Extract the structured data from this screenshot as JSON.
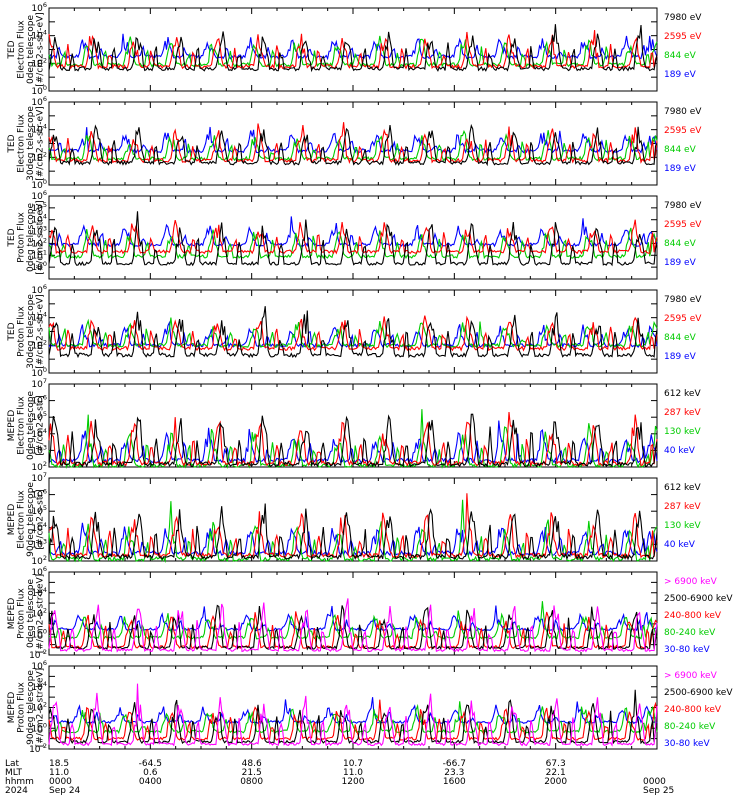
{
  "chart_data": [
    {
      "type": "line",
      "instrument": "TED",
      "ylabel": [
        "TED",
        "Electron Flux",
        "0deg telescope",
        "[#/cm2-s-str-eV]"
      ],
      "ylim": [
        1,
        1000000
      ],
      "yscale": "log",
      "ytick_labels": [
        "10^6",
        "10^4",
        "10^2",
        "10^0"
      ],
      "series": [
        {
          "name": "7980 eV",
          "color": "#000000",
          "base": 40
        },
        {
          "name": "2595 eV",
          "color": "#ff0000",
          "base": 60
        },
        {
          "name": "844 eV",
          "color": "#00cc00",
          "base": 80
        },
        {
          "name": "189 eV",
          "color": "#0000ff",
          "base": 300
        }
      ]
    },
    {
      "type": "line",
      "instrument": "TED",
      "ylabel": [
        "TED",
        "Electron Flux",
        "30deg telescope",
        "[#/cm2-s-str-eV]"
      ],
      "ylim": [
        1,
        1000000
      ],
      "yscale": "log",
      "ytick_labels": [
        "10^6",
        "10^4",
        "10^2",
        "10^0"
      ],
      "series": [
        {
          "name": "7980 eV",
          "color": "#000000",
          "base": 40
        },
        {
          "name": "2595 eV",
          "color": "#ff0000",
          "base": 60
        },
        {
          "name": "844 eV",
          "color": "#00cc00",
          "base": 80
        },
        {
          "name": "189 eV",
          "color": "#0000ff",
          "base": 300
        }
      ]
    },
    {
      "type": "line",
      "instrument": "TED",
      "ylabel": [
        "TED",
        "Proton Flux",
        "0deg telescope",
        "[#/cm2-s-str-eV]"
      ],
      "ylim": [
        0.1,
        1000000
      ],
      "yscale": "log",
      "ytick_labels": [
        "10^6",
        "10^5",
        "10^4",
        "10^3",
        "10^2",
        "10^1",
        "10^0"
      ],
      "series": [
        {
          "name": "7980 eV",
          "color": "#000000",
          "base": 2
        },
        {
          "name": "2595 eV",
          "color": "#ff0000",
          "base": 20
        },
        {
          "name": "844 eV",
          "color": "#00cc00",
          "base": 8
        },
        {
          "name": "189 eV",
          "color": "#0000ff",
          "base": 80
        }
      ]
    },
    {
      "type": "line",
      "instrument": "TED",
      "ylabel": [
        "TED",
        "Proton Flux",
        "30deg telescope",
        "[#/cm2-s-str-eV]"
      ],
      "ylim": [
        1,
        1000000
      ],
      "yscale": "log",
      "ytick_labels": [
        "10^6",
        "10^4",
        "10^2",
        "10^0"
      ],
      "series": [
        {
          "name": "7980 eV",
          "color": "#000000",
          "base": 20
        },
        {
          "name": "2595 eV",
          "color": "#ff0000",
          "base": 60
        },
        {
          "name": "844 eV",
          "color": "#00cc00",
          "base": 100
        },
        {
          "name": "189 eV",
          "color": "#0000ff",
          "base": 100
        }
      ]
    },
    {
      "type": "line",
      "instrument": "MEPED",
      "ylabel": [
        "MEPED",
        "Electron Flux",
        "0deg telescope",
        "[#/cm2-s-str]"
      ],
      "ylim": [
        100,
        10000000
      ],
      "yscale": "log",
      "ytick_labels": [
        "10^7",
        "10^6",
        "10^5",
        "10^4",
        "10^3",
        "10^2"
      ],
      "series": [
        {
          "name": "612 keV",
          "color": "#000000",
          "base": 150
        },
        {
          "name": "287 keV",
          "color": "#ff0000",
          "base": 170
        },
        {
          "name": "130 keV",
          "color": "#00cc00",
          "base": 120
        },
        {
          "name": "40 keV",
          "color": "#0000ff",
          "base": 250
        }
      ]
    },
    {
      "type": "line",
      "instrument": "MEPED",
      "ylabel": [
        "MEPED",
        "Electron Flux",
        "90deg telescope",
        "[#/cm2-s-str]"
      ],
      "ylim": [
        100,
        10000000
      ],
      "yscale": "log",
      "ytick_labels": [
        "10^7",
        "10^6",
        "10^5",
        "10^4",
        "10^3",
        "10^2"
      ],
      "series": [
        {
          "name": "612 keV",
          "color": "#000000",
          "base": 180
        },
        {
          "name": "287 keV",
          "color": "#ff0000",
          "base": 220
        },
        {
          "name": "130 keV",
          "color": "#00cc00",
          "base": 130
        },
        {
          "name": "40 keV",
          "color": "#0000ff",
          "base": 300
        }
      ]
    },
    {
      "type": "line",
      "instrument": "MEPED",
      "ylabel": [
        "MEPED",
        "Proton Flux",
        "0deg telescope",
        "[#/cm2-s-str-keV]"
      ],
      "ylim": [
        0.01,
        1000000
      ],
      "yscale": "log",
      "ytick_labels": [
        "10^6",
        "10^4",
        "10^2",
        "10^0",
        "10^-2"
      ],
      "series": [
        {
          "name": "> 6900 keV",
          "color": "#ff00ff",
          "base": 0.03
        },
        {
          "name": "2500-6900 keV",
          "color": "#000000",
          "base": 0.05
        },
        {
          "name": "240-800 keV",
          "color": "#ff0000",
          "base": 0.06
        },
        {
          "name": "80-240 keV",
          "color": "#00cc00",
          "base": 0.5
        },
        {
          "name": "30-80 keV",
          "color": "#0000ff",
          "base": 3
        }
      ]
    },
    {
      "type": "line",
      "instrument": "MEPED",
      "ylabel": [
        "MEPED",
        "Proton Flux",
        "90deg telescope",
        "[#/cm2-s-str-keV]"
      ],
      "ylim": [
        0.01,
        1000000
      ],
      "yscale": "log",
      "ytick_labels": [
        "10^6",
        "10^4",
        "10^2",
        "10^0",
        "10^-2"
      ],
      "series": [
        {
          "name": "> 6900 keV",
          "color": "#ff00ff",
          "base": 0.03
        },
        {
          "name": "2500-6900 keV",
          "color": "#000000",
          "base": 0.05
        },
        {
          "name": "240-800 keV",
          "color": "#ff0000",
          "base": 0.1
        },
        {
          "name": "80-240 keV",
          "color": "#00cc00",
          "base": 0.5
        },
        {
          "name": "30-80 keV",
          "color": "#0000ff",
          "base": 4
        }
      ]
    }
  ],
  "xaxis": {
    "rows": [
      {
        "label": "Lat",
        "values": [
          "18.5",
          "-64.5",
          "48.6",
          "10.7",
          "-66.7",
          "67.3",
          ""
        ]
      },
      {
        "label": "MLT",
        "values": [
          "11.0",
          "0.6",
          "21.5",
          "11.0",
          "23.3",
          "22.1",
          ""
        ]
      },
      {
        "label": "hhmm",
        "values": [
          "0000",
          "0400",
          "0800",
          "1200",
          "1600",
          "2000",
          "0000"
        ]
      },
      {
        "label": "2024",
        "values": [
          "Sep 24",
          "",
          "",
          "",
          "",
          "",
          "Sep 25"
        ]
      }
    ]
  },
  "colors": {
    "black": "#000000",
    "red": "#ff0000",
    "green": "#00cc00",
    "blue": "#0000ff",
    "magenta": "#ff00ff"
  }
}
